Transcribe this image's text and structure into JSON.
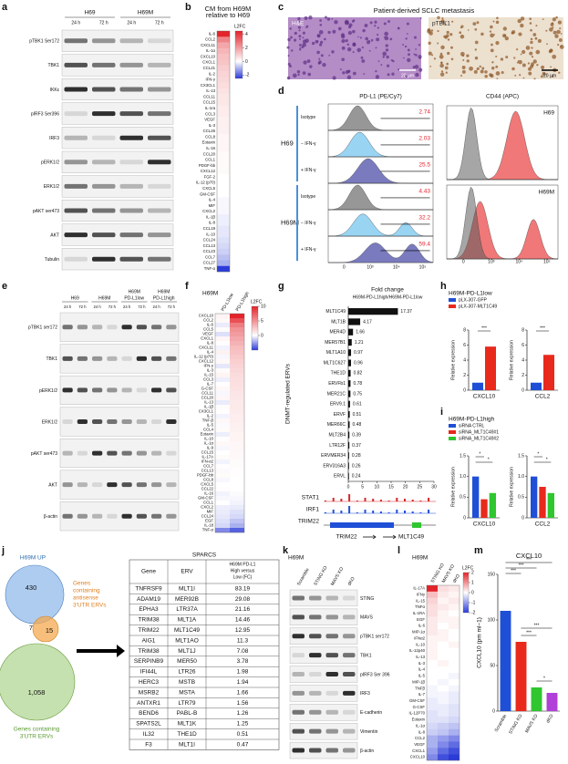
{
  "panel_letters": [
    "a",
    "b",
    "c",
    "d",
    "e",
    "f",
    "g",
    "h",
    "i",
    "j",
    "k",
    "l",
    "m"
  ],
  "blot_a": {
    "groups": [
      "H69",
      "H69M"
    ],
    "lanes": [
      "24 h",
      "72 h"
    ],
    "rows": [
      "pTBK1 Ser172",
      "TBK1",
      "IKKε",
      "pIRF3 Ser396",
      "IRF3",
      "pERK1/2",
      "ERK1/2",
      "pAKT ser473",
      "AKT",
      "Tubulin"
    ]
  },
  "histology": {
    "title": "Patient-derived SCLC metastasis",
    "images": [
      "H&E",
      "pTBK1"
    ],
    "scale_bar": "20 μm"
  },
  "flow": {
    "headers": [
      "PD-L1 (PE/Cy7)",
      "CD44 (APC)"
    ],
    "lines": [
      "H69",
      "H69M"
    ],
    "conditions": [
      "Isotype",
      "− IFN-γ",
      "+ IFN-γ"
    ],
    "percentages": [
      [
        2.74,
        2.03,
        25.5
      ],
      [
        4.43,
        32.2,
        59.4
      ]
    ],
    "axis_ticks": [
      "0",
      "10³",
      "10⁴",
      "10⁵"
    ]
  },
  "blot_e": {
    "groups": [
      [
        "H69"
      ],
      [
        "H69M"
      ],
      [
        "H69M",
        "PD-L1low"
      ],
      [
        "H69M",
        "PD-L1high"
      ]
    ],
    "lanes": [
      "24 h",
      "72 h"
    ],
    "rows": [
      "pTBK1 ser172",
      "TBK1",
      "pERK1/2",
      "ERK1/2",
      "pAKT ser473",
      "AKT",
      "β-actin"
    ]
  },
  "tracks": {
    "names": [
      "STAT1",
      "IRF1",
      "TRIM22"
    ],
    "genes": [
      "TRIM22",
      "MLT1C49"
    ]
  },
  "venn": {
    "title": "H69M UP",
    "counts": [
      "430",
      "7",
      "15",
      "1,058"
    ],
    "antisense_label": [
      "Genes",
      "containing",
      "antisense",
      "3'UTR ERVs"
    ],
    "utr_label": [
      "Genes containing",
      "3'UTR ERVs"
    ]
  },
  "table": {
    "title": "SPARCS",
    "headers": [
      "Gene",
      "ERV"
    ],
    "fc_header": [
      "H69M PD-L1",
      "High versus",
      "Low (FC)"
    ],
    "rows": [
      [
        "TNFRSF9",
        "MLT1I",
        83.19
      ],
      [
        "ADAM19",
        "MER92B",
        29.08
      ],
      [
        "EPHA3",
        "LTR37A",
        21.16
      ],
      [
        "TRIM38",
        "MLT1A",
        14.46
      ],
      [
        "TRIM22",
        "MLT1C49",
        12.95
      ],
      [
        "AIG1",
        "MLT1AO",
        11.3
      ],
      [
        "TRIM38",
        "MLT1J",
        7.08
      ],
      [
        "SERPINB9",
        "MER50",
        3.78
      ],
      [
        "IFI44L",
        "LTR26",
        1.98
      ],
      [
        "HERC3",
        "MSTB",
        1.94
      ],
      [
        "MSRB2",
        "MSTA",
        1.66
      ],
      [
        "ANTXR1",
        "LTR79",
        1.56
      ],
      [
        "BEND6",
        "PABL-B",
        1.26
      ],
      [
        "SPATS2L",
        "MLT1K",
        1.25
      ],
      [
        "IL32",
        "THE1D",
        0.51
      ],
      [
        "F3",
        "MLT1I",
        0.47
      ]
    ]
  },
  "blot_k": {
    "group": "H69M",
    "lanes": [
      "Scramble",
      "STING KO",
      "MAVS KO",
      "dKO"
    ],
    "rows": [
      "STING",
      "MAVS",
      "pTBK1 ser172",
      "TBK1",
      "pIRF3 Ser 396",
      "IRF3",
      "E-cadherin",
      "Vimentin",
      "β-actin"
    ]
  },
  "chart_data": [
    {
      "type": "heatmap",
      "title": [
        "CM from H69M",
        "relative to H69"
      ],
      "legend_title": "L2FC",
      "colors": [
        "#2b3bd8",
        "#ffffff",
        "#e3242b"
      ],
      "clim": [
        -2.5,
        4.5
      ],
      "cticks": [
        4,
        2,
        0,
        -2
      ],
      "rows": [
        "IL-6",
        "CCL2",
        "CXCL11",
        "IL-1α",
        "CXCL10",
        "CXCL1",
        "CCL21",
        "IL-2",
        "IFN-γ",
        "CX3CL1",
        "IL-13",
        "CCL11",
        "CCL15",
        "IL-1ra",
        "CCL3",
        "VEGF",
        "IL-3",
        "CCL26",
        "CCL8",
        "Eotaxin",
        "IL-16",
        "CCL20",
        "CCL1",
        "PDGF-bb",
        "CXCL12",
        "FGF-2",
        "IL-12 (p70)",
        "CXCL5",
        "GM-CSF",
        "IL-4",
        "MIF",
        "CXCL2",
        "IL-1β",
        "IL-8",
        "CCL19",
        "IL-10",
        "CCL24",
        "CCL13",
        "CCL23",
        "CCL7",
        "CCL27",
        "TNF-α"
      ],
      "values": [
        [
          4.5
        ],
        [
          2.5
        ],
        [
          1.8
        ],
        [
          1.5
        ],
        [
          1.3
        ],
        [
          1.2
        ],
        [
          1
        ],
        [
          0.9
        ],
        [
          0.8
        ],
        [
          0.7
        ],
        [
          0.6
        ],
        [
          0.5
        ],
        [
          0.5
        ],
        [
          0.4
        ],
        [
          0.4
        ],
        [
          0.3
        ],
        [
          0.3
        ],
        [
          0.3
        ],
        [
          0.2
        ],
        [
          0.2
        ],
        [
          0.2
        ],
        [
          0.1
        ],
        [
          0.1
        ],
        [
          0.1
        ],
        [
          0.1
        ],
        [
          0
        ],
        [
          0
        ],
        [
          0
        ],
        [
          0
        ],
        [
          -0.1
        ],
        [
          -0.1
        ],
        [
          -0.1
        ],
        [
          -0.2
        ],
        [
          -0.2
        ],
        [
          -0.3
        ],
        [
          -0.3
        ],
        [
          -0.4
        ],
        [
          -0.5
        ],
        [
          -0.6
        ],
        [
          -0.8
        ],
        [
          -1
        ],
        [
          -2.5
        ]
      ]
    },
    {
      "type": "heatmap",
      "group": "H69M",
      "columns": [
        "PD-L1low",
        "PD-L1high"
      ],
      "legend_title": "L2FC",
      "colors": [
        "#2b3bd8",
        "#ffffff",
        "#e3242b"
      ],
      "clim": [
        -5,
        10
      ],
      "cticks": [
        10,
        5,
        0
      ],
      "rows": [
        "CXCL10",
        "CCL2",
        "IL-6",
        "CCL5",
        "VEGF",
        "CXCL1",
        "IL-8",
        "CXCL11",
        "IL-4",
        "IL-12 (p70)",
        "CXCL12",
        "IFN-γ",
        "IL-3",
        "IL-15",
        "CCL3",
        "IL-7",
        "G-CSF",
        "CCL11",
        "CCL20",
        "IL-13",
        "IL-1β",
        "CX3CL1",
        "IL-2",
        "TNF-β",
        "IL-5",
        "CCL4",
        "Eotaxin",
        "IL-10",
        "IL-1α",
        "IL-9",
        "CCL15",
        "IL-17A",
        "IFN-α2",
        "CCL7",
        "CCL13",
        "PDGF-bb",
        "CCL8",
        "CXCL5",
        "CCL22",
        "IL-16",
        "GM-CSF",
        "CCL1",
        "CXCL2",
        "MIF",
        "CCL24",
        "EGF",
        "IL-18",
        "TNF-α"
      ],
      "values": [
        [
          0.5,
          10
        ],
        [
          0.3,
          8
        ],
        [
          -0.5,
          6
        ],
        [
          0.2,
          5
        ],
        [
          -0.8,
          4.5
        ],
        [
          0.4,
          4
        ],
        [
          0.1,
          3.5
        ],
        [
          -0.3,
          3
        ],
        [
          0.6,
          2.8
        ],
        [
          -0.2,
          2.5
        ],
        [
          0.3,
          2.2
        ],
        [
          -0.6,
          2
        ],
        [
          0.2,
          1.8
        ],
        [
          0.5,
          1.6
        ],
        [
          -0.4,
          1.5
        ],
        [
          0.1,
          1.4
        ],
        [
          0.3,
          1.3
        ],
        [
          -0.2,
          1.2
        ],
        [
          0.4,
          1.1
        ],
        [
          -0.5,
          1
        ],
        [
          0.2,
          1
        ],
        [
          0.1,
          0.9
        ],
        [
          -0.3,
          0.8
        ],
        [
          0.3,
          0.8
        ],
        [
          -0.1,
          0.7
        ],
        [
          0.2,
          0.6
        ],
        [
          -0.4,
          0.5
        ],
        [
          0.1,
          0.5
        ],
        [
          0.3,
          0.4
        ],
        [
          -0.2,
          0.4
        ],
        [
          0,
          0.3
        ],
        [
          0.2,
          0.3
        ],
        [
          -0.3,
          0.2
        ],
        [
          0.1,
          0.2
        ],
        [
          -0.1,
          0.1
        ],
        [
          0.2,
          0.1
        ],
        [
          -0.2,
          0
        ],
        [
          0,
          0
        ],
        [
          0.1,
          0
        ],
        [
          -0.3,
          -0.1
        ],
        [
          -0.2,
          -0.2
        ],
        [
          0,
          -0.3
        ],
        [
          -0.4,
          -0.5
        ],
        [
          -0.5,
          -0.8
        ],
        [
          -0.6,
          -1
        ],
        [
          -0.8,
          -1.5
        ],
        [
          -1,
          -2
        ],
        [
          -3,
          -4
        ]
      ]
    },
    {
      "type": "hbar",
      "title": "Fold change",
      "subtitle": "H69M-PD-L1high/H69M-PD-L1low",
      "ylabel": "DNMT-regulated ERVs",
      "color": "#111111",
      "xlim": [
        0,
        30
      ],
      "xticks": [
        0,
        5,
        10,
        15,
        20,
        25,
        30
      ],
      "categories": [
        "MLT1C49",
        "MLT1B",
        "MER4D",
        "MER57B1",
        "MLT1A10",
        "MLT1C627",
        "THE1D",
        "ERVFb1",
        "MER21C",
        "ERV9.1",
        "ERVF",
        "MER66C",
        "MLT2B4",
        "LTR12F",
        "ERVMER34",
        "ERV316A3",
        "ERVL"
      ],
      "values": [
        17.37,
        4.17,
        1.66,
        1.21,
        0.97,
        0.96,
        0.82,
        0.78,
        0.75,
        0.61,
        0.51,
        0.48,
        0.39,
        0.37,
        0.28,
        0.26,
        0.24
      ]
    },
    {
      "type": "groupbar",
      "title": "H69M-PD-L1low",
      "ylabel": "Relative expression",
      "ylim": [
        0,
        8
      ],
      "yticks": [
        0,
        2,
        4,
        6,
        8
      ],
      "categories": [
        "CXCL10",
        "CCL2"
      ],
      "annotations": [
        "***",
        "***"
      ],
      "series": [
        {
          "name": "pLX-307-GFP",
          "color": "#1f4fd6",
          "values": [
            1,
            1
          ]
        },
        {
          "name": "pLX-307-MLT1C49",
          "color": "#e8291c",
          "values": [
            5.8,
            4.7
          ]
        }
      ]
    },
    {
      "type": "groupbar",
      "title": "H69M-PD-L1high",
      "ylabel": "Relative expression",
      "ylim": [
        0,
        1.5
      ],
      "yticks": [
        0,
        0.5,
        {
          "value": 1,
          "label": "1.0"
        },
        1.5
      ],
      "categories": [
        "CXCL10",
        "CCL2"
      ],
      "annotations": [
        "*",
        "*",
        "*",
        "*"
      ],
      "series": [
        {
          "name": "siRNA CTRL",
          "color": "#1f4fd6",
          "values": [
            1,
            1
          ]
        },
        {
          "name": "siRNA_MLT1C49#1",
          "color": "#e8291c",
          "values": [
            0.45,
            0.75
          ]
        },
        {
          "name": "siRNA_MLT1C49#2",
          "color": "#2fc62f",
          "values": [
            0.6,
            0.6
          ]
        }
      ]
    },
    {
      "type": "heatmap",
      "group": "H69M",
      "columns": [
        "STING KO",
        "MAVS KO",
        "dKO"
      ],
      "legend_title": "L2FC",
      "colors": [
        "#2b3bd8",
        "#ffffff",
        "#e3242b"
      ],
      "clim": [
        -2,
        2
      ],
      "cticks": [
        2,
        1,
        0,
        -1,
        -2
      ],
      "rows": [
        "IL-17A",
        "IFNγ",
        "IL-15",
        "TNFα",
        "IL-1RA",
        "EGF",
        "IL-6",
        "MIP-1α",
        "IFNα2",
        "IL-10",
        "IL-12p40",
        "IL-13",
        "IL-3",
        "IL-4",
        "IL-5",
        "MIP-1β",
        "TNFβ",
        "IL-7",
        "GM-CSF",
        "G-CSF",
        "IL-12P70",
        "Eotaxin",
        "IL-1α",
        "IL-8",
        "CCL2",
        "VEGF",
        "CXCL1",
        "CXCL10"
      ],
      "values": [
        [
          2,
          0.3,
          0.2
        ],
        [
          0.6,
          0.2,
          0.1
        ],
        [
          0.4,
          0.1,
          0.2
        ],
        [
          0.3,
          0.2,
          0.1
        ],
        [
          0.3,
          0.1,
          0
        ],
        [
          0.2,
          0.1,
          0.1
        ],
        [
          0.2,
          0,
          0.1
        ],
        [
          0.2,
          0.1,
          0
        ],
        [
          0.1,
          0.1,
          0
        ],
        [
          0.1,
          0,
          0.1
        ],
        [
          0.1,
          0,
          0
        ],
        [
          0.1,
          0,
          0
        ],
        [
          0,
          0.1,
          0
        ],
        [
          0,
          0,
          0
        ],
        [
          0,
          0,
          -0.1
        ],
        [
          0,
          -0.1,
          0
        ],
        [
          -0.1,
          0,
          -0.1
        ],
        [
          -0.1,
          -0.1,
          -0.2
        ],
        [
          -0.2,
          -0.1,
          -0.2
        ],
        [
          -0.2,
          -0.2,
          -0.3
        ],
        [
          -0.3,
          -0.2,
          -0.3
        ],
        [
          -0.3,
          -0.3,
          -0.4
        ],
        [
          -0.4,
          -0.5,
          -0.6
        ],
        [
          -0.5,
          -0.6,
          -0.8
        ],
        [
          -0.8,
          -1,
          -1.2
        ],
        [
          -0.8,
          -1.2,
          -1.5
        ],
        [
          -1,
          -1.5,
          -1.8
        ],
        [
          -1.2,
          -1.8,
          -2
        ]
      ]
    },
    {
      "type": "bar",
      "title": "CXCL10",
      "ylabel": "CXCL10 (pm ml−1)",
      "ylim": [
        0,
        150
      ],
      "yticks": [
        0,
        50,
        100,
        150
      ],
      "categories": [
        "Scramble",
        "STING KO",
        "MAVS KO",
        "dKO"
      ],
      "values": [
        110,
        76,
        26,
        20
      ],
      "colors": [
        "#1f4fd6",
        "#e8291c",
        "#2fc62f",
        "#b040d8"
      ],
      "annotations": [
        "***",
        "***",
        "***",
        "***",
        "***",
        "*"
      ]
    }
  ]
}
